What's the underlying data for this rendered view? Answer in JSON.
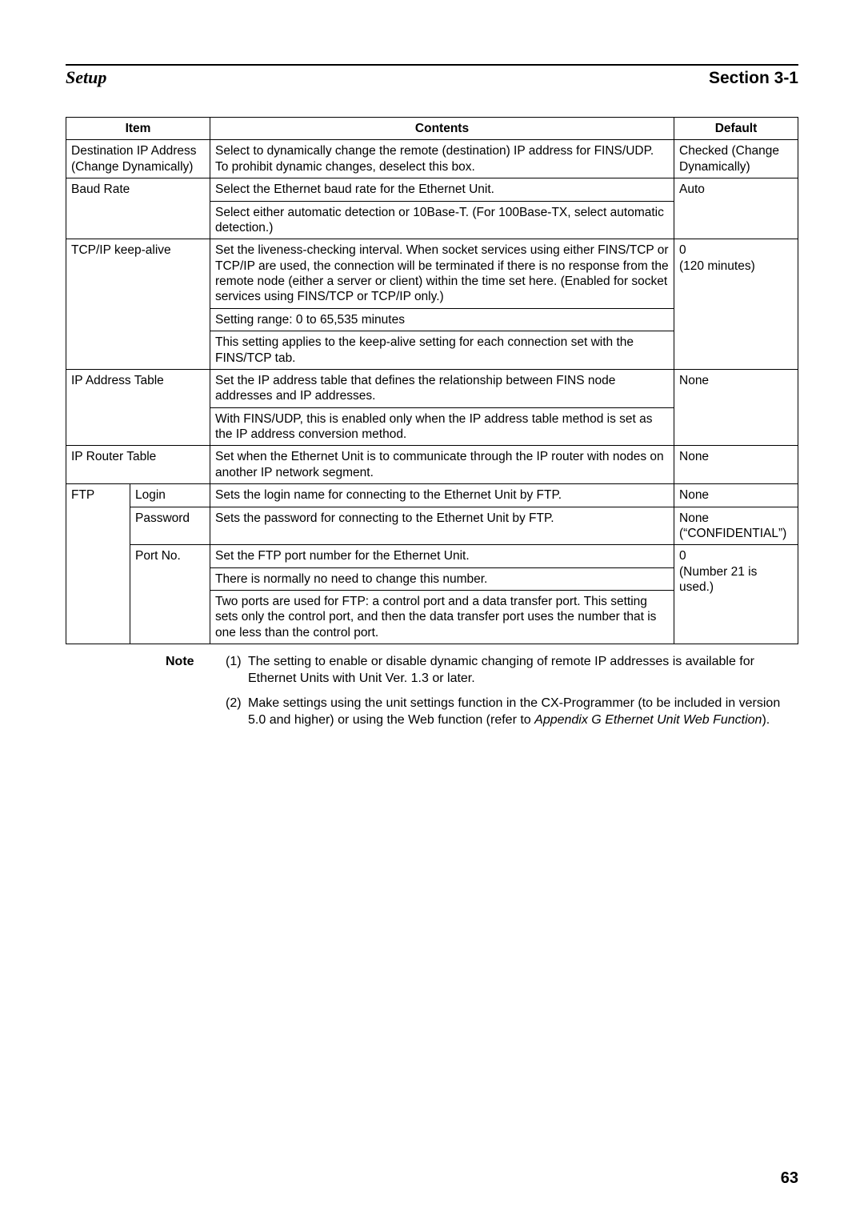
{
  "header": {
    "left": "Setup",
    "right": "Section 3-1"
  },
  "table": {
    "columns": {
      "item": "Item",
      "contents": "Contents",
      "default": "Default"
    },
    "rows": [
      {
        "item": "Destination IP Address (Change Dynamically)",
        "contents": [
          "Select to dynamically change the remote (destination) IP address for FINS/UDP. To prohibit dynamic changes, deselect this box."
        ],
        "default": "Checked (Change Dynamically)"
      },
      {
        "item": "Baud Rate",
        "contents": [
          "Select the Ethernet baud rate for the Ethernet Unit.",
          "Select either automatic detection or 10Base-T. (For 100Base-TX, select automatic detection.)"
        ],
        "default": "Auto"
      },
      {
        "item": "TCP/IP keep-alive",
        "contents": [
          "Set the liveness-checking interval. When socket services using either FINS/TCP or TCP/IP are used, the connection will be terminated if there is no response from the remote node (either a server or client) within the time set here. (Enabled for socket services using FINS/TCP or TCP/IP only.)",
          "Setting range: 0 to 65,535 minutes",
          "This setting applies to the keep-alive setting for each connection set with the FINS/TCP tab."
        ],
        "default": "0\n(120 minutes)"
      },
      {
        "item": "IP Address Table",
        "contents": [
          "Set the IP address table that defines the relationship between FINS node addresses and IP addresses.",
          "With FINS/UDP, this is enabled only when the IP address table method is set as the IP address conversion method."
        ],
        "default": "None"
      },
      {
        "item": "IP Router Table",
        "contents": [
          "Set when the Ethernet Unit is to communicate through the IP router with nodes on another IP network segment."
        ],
        "default": "None"
      }
    ],
    "ftp": {
      "label": "FTP",
      "rows": [
        {
          "sub": "Login",
          "contents": [
            "Sets the login name for connecting to the Ethernet Unit by FTP."
          ],
          "default": "None"
        },
        {
          "sub": "Password",
          "contents": [
            "Sets the password for connecting to the Ethernet Unit by FTP."
          ],
          "default": "None\n(“CONFIDENTIAL”)"
        },
        {
          "sub": "Port No.",
          "contents": [
            "Set the FTP port number for the Ethernet Unit.",
            "There is normally no need to change this number.",
            "Two ports are used for FTP: a control port and a data transfer port. This setting sets only the control port, and then the data transfer port uses the number that is one less than the control port."
          ],
          "default": "0\n(Number 21 is used.)"
        }
      ]
    }
  },
  "notes": {
    "label": "Note",
    "items": [
      {
        "num": "(1)",
        "text": "The setting to enable or disable dynamic changing of remote IP addresses is available for Ethernet Units with Unit Ver. 1.3 or later."
      },
      {
        "num": "(2)",
        "text_before": "Make settings using the unit settings function in the CX-Programmer (to be included in version 5.0 and higher) or using the Web function (refer to ",
        "text_ital": "Appendix G Ethernet Unit Web Function",
        "text_after": ")."
      }
    ]
  },
  "page_number": "63"
}
